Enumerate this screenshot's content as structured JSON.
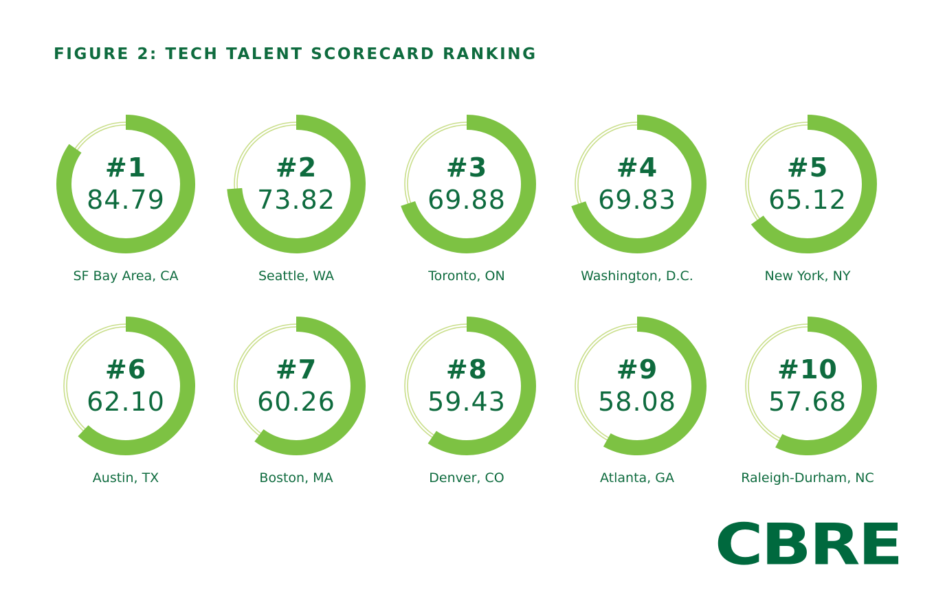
{
  "title": "FIGURE 2: TECH TALENT SCORECARD RANKING",
  "logo_text": "CBRE",
  "colors": {
    "ring": "#7dc243",
    "ring_track": "#c9de8a",
    "text": "#0e6b3e",
    "logo": "#00693e"
  },
  "chart_data": {
    "type": "radial-progress",
    "title": "FIGURE 2: TECH TALENT SCORECARD RANKING",
    "max": 100,
    "items": [
      {
        "rank": "#1",
        "score": "84.79",
        "city": "SF Bay Area, CA",
        "value": 84.79
      },
      {
        "rank": "#2",
        "score": "73.82",
        "city": "Seattle, WA",
        "value": 73.82
      },
      {
        "rank": "#3",
        "score": "69.88",
        "city": "Toronto, ON",
        "value": 69.88
      },
      {
        "rank": "#4",
        "score": "69.83",
        "city": "Washington, D.C.",
        "value": 69.83
      },
      {
        "rank": "#5",
        "score": "65.12",
        "city": "New York, NY",
        "value": 65.12
      },
      {
        "rank": "#6",
        "score": "62.10",
        "city": "Austin, TX",
        "value": 62.1
      },
      {
        "rank": "#7",
        "score": "60.26",
        "city": "Boston, MA",
        "value": 60.26
      },
      {
        "rank": "#8",
        "score": "59.43",
        "city": "Denver, CO",
        "value": 59.43
      },
      {
        "rank": "#9",
        "score": "58.08",
        "city": "Atlanta, GA",
        "value": 58.08
      },
      {
        "rank": "#10",
        "score": "57.68",
        "city": "Raleigh-Durham, NC",
        "value": 57.68
      }
    ]
  }
}
